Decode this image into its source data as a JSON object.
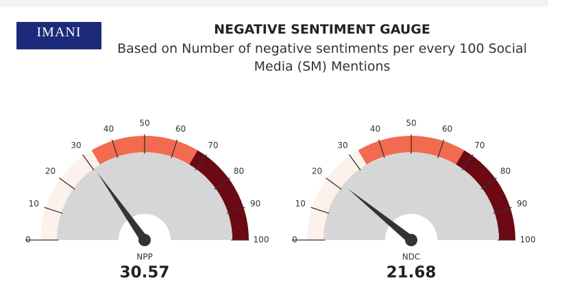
{
  "header": {
    "logo": "IMANI",
    "title": "NEGATIVE SENTIMENT GAUGE",
    "subtitle": "Based on Number of negative sentiments per every 100 Social Media (SM) Mentions"
  },
  "chart_data": [
    {
      "type": "gauge",
      "name": "NPP",
      "value": 30.57,
      "ylim": [
        0,
        100
      ],
      "yticks": [
        0,
        10,
        20,
        30,
        40,
        50,
        60,
        70,
        80,
        90,
        100
      ],
      "bands": [
        {
          "from": 0,
          "to": 33,
          "color": "#fdf1ec"
        },
        {
          "from": 33,
          "to": 67,
          "color": "#f26a4f"
        },
        {
          "from": 67,
          "to": 100,
          "color": "#6b0a14"
        }
      ]
    },
    {
      "type": "gauge",
      "name": "NDC",
      "value": 21.68,
      "ylim": [
        0,
        100
      ],
      "yticks": [
        0,
        10,
        20,
        30,
        40,
        50,
        60,
        70,
        80,
        90,
        100
      ],
      "bands": [
        {
          "from": 0,
          "to": 33,
          "color": "#fdf1ec"
        },
        {
          "from": 33,
          "to": 67,
          "color": "#f26a4f"
        },
        {
          "from": 67,
          "to": 100,
          "color": "#6b0a14"
        }
      ]
    }
  ]
}
